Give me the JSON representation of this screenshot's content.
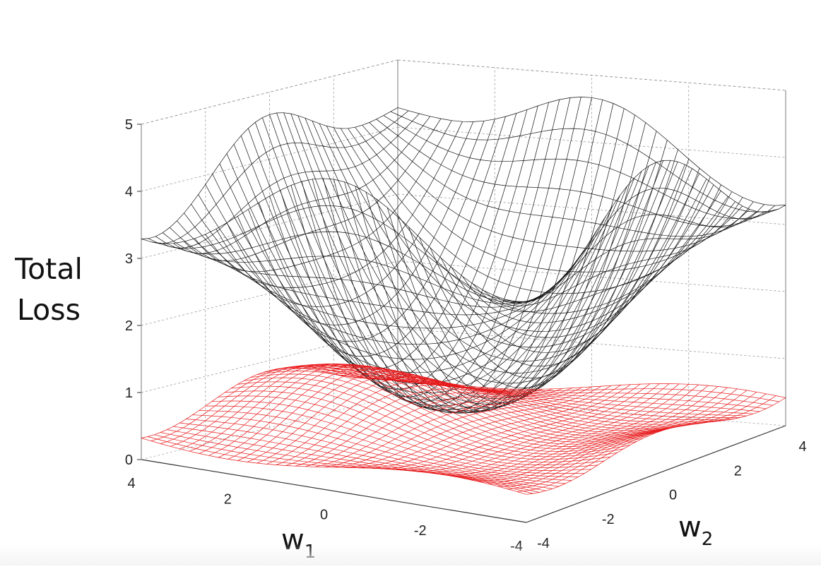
{
  "chart_data": {
    "type": "surface",
    "z_label_lines": [
      "Total",
      "Loss"
    ],
    "x_label": "w",
    "x_label_sub": "1",
    "y_label": "w",
    "y_label_sub": "2",
    "z_ticks": [
      "0",
      "1",
      "2",
      "3",
      "4",
      "5"
    ],
    "x_ticks": [
      "4",
      "2",
      "0",
      "-2",
      "-4"
    ],
    "y_ticks": [
      "-4",
      "-2",
      "0",
      "2",
      "4"
    ],
    "xlim": [
      -4,
      4
    ],
    "ylim": [
      -4,
      4
    ],
    "zlim": [
      0,
      5
    ],
    "grid": true,
    "series": [
      {
        "color": "#111111",
        "description_values": "total loss surface with valleys along w1=0 and w2=0, peaks near 5 at the back-center and about 4 at the corners",
        "z_range": [
          0.6,
          5.0
        ]
      },
      {
        "color": "#e8191b",
        "z_range": [
          0.0,
          1.0
        ]
      }
    ]
  }
}
